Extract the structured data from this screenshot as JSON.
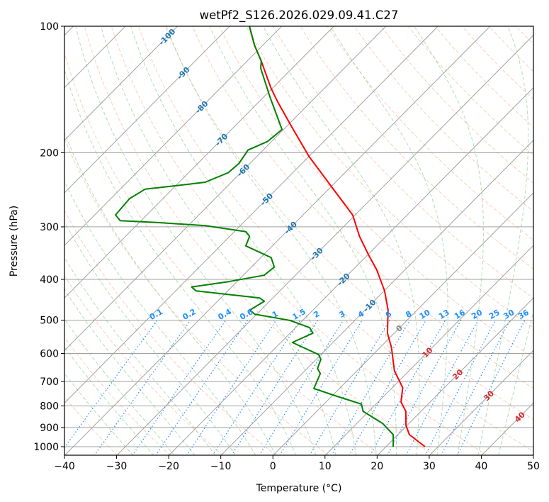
{
  "chart_data": {
    "type": "line",
    "subtype": "skew-t log-p",
    "title": "wetPf2_S126.2026.029.09.41.C27",
    "xlabel": "Temperature (°C)",
    "ylabel": "Pressure (hPa)",
    "xlim": [
      -40,
      50
    ],
    "ylim": [
      1050,
      100
    ],
    "xticks": [
      "−40",
      "−30",
      "−20",
      "−10",
      "0",
      "10",
      "20",
      "30",
      "40",
      "50"
    ],
    "xtick_values": [
      -40,
      -30,
      -20,
      -10,
      0,
      10,
      20,
      30,
      40,
      50
    ],
    "yticks": [
      "100",
      "200",
      "300",
      "400",
      "500",
      "600",
      "700",
      "800",
      "900",
      "1000"
    ],
    "ytick_values": [
      100,
      200,
      300,
      400,
      500,
      600,
      700,
      800,
      900,
      1000
    ],
    "grid": true,
    "series": [
      {
        "name": "Temperature",
        "color": "#ff0000",
        "points": [
          [
            100,
            -86.2
          ],
          [
            111,
            -81.6
          ],
          [
            121,
            -77.3
          ],
          [
            140,
            -70.4
          ],
          [
            151,
            -66.5
          ],
          [
            172,
            -59.4
          ],
          [
            204,
            -50.0
          ],
          [
            240,
            -40.1
          ],
          [
            281,
            -30.5
          ],
          [
            316,
            -25.1
          ],
          [
            350,
            -19.8
          ],
          [
            379,
            -15.5
          ],
          [
            426,
            -9.9
          ],
          [
            473,
            -5.6
          ],
          [
            537,
            -1.3
          ],
          [
            581,
            2.2
          ],
          [
            660,
            7.2
          ],
          [
            724,
            12.0
          ],
          [
            783,
            14.4
          ],
          [
            824,
            17.1
          ],
          [
            890,
            19.8
          ],
          [
            936,
            22.2
          ],
          [
            1000,
            27.5
          ]
        ]
      },
      {
        "name": "Dewpoint",
        "color": "#008000",
        "points": [
          [
            100,
            -86.2
          ],
          [
            111,
            -81.6
          ],
          [
            121,
            -77.3
          ],
          [
            126,
            -76.0
          ],
          [
            147,
            -68.9
          ],
          [
            166,
            -63.1
          ],
          [
            176,
            -60.3
          ],
          [
            188,
            -60.8
          ],
          [
            197,
            -62.9
          ],
          [
            212,
            -62.1
          ],
          [
            223,
            -62.4
          ],
          [
            235,
            -65.0
          ],
          [
            240,
            -70.6
          ],
          [
            244,
            -75.2
          ],
          [
            257,
            -76.4
          ],
          [
            281,
            -76.0
          ],
          [
            290,
            -74.0
          ],
          [
            293,
            -66.4
          ],
          [
            298,
            -56.7
          ],
          [
            308,
            -47.8
          ],
          [
            316,
            -46.2
          ],
          [
            333,
            -45.1
          ],
          [
            355,
            -38.0
          ],
          [
            374,
            -35.6
          ],
          [
            391,
            -36.0
          ],
          [
            405,
            -41.6
          ],
          [
            417,
            -47.7
          ],
          [
            426,
            -46.1
          ],
          [
            443,
            -32.5
          ],
          [
            451,
            -31.0
          ],
          [
            473,
            -32.1
          ],
          [
            484,
            -30.4
          ],
          [
            501,
            -22.4
          ],
          [
            521,
            -17.3
          ],
          [
            537,
            -15.6
          ],
          [
            565,
            -17.8
          ],
          [
            604,
            -10.4
          ],
          [
            620,
            -9.1
          ],
          [
            652,
            -8.0
          ],
          [
            670,
            -6.5
          ],
          [
            727,
            -4.9
          ],
          [
            756,
            0.5
          ],
          [
            792,
            7.2
          ],
          [
            824,
            8.9
          ],
          [
            880,
            14.9
          ],
          [
            936,
            19.1
          ],
          [
            1000,
            21.4
          ]
        ]
      }
    ],
    "isotherm_labels": [
      {
        "value": -100,
        "text": "-100",
        "color": "#1f77b4"
      },
      {
        "value": -90,
        "text": "-90",
        "color": "#1f77b4"
      },
      {
        "value": -80,
        "text": "-80",
        "color": "#1f77b4"
      },
      {
        "value": -70,
        "text": "-70",
        "color": "#1f77b4"
      },
      {
        "value": -60,
        "text": "-60",
        "color": "#1f77b4"
      },
      {
        "value": -50,
        "text": "-50",
        "color": "#1f77b4"
      },
      {
        "value": -40,
        "text": "-40",
        "color": "#1f77b4"
      },
      {
        "value": -30,
        "text": "-30",
        "color": "#1f77b4"
      },
      {
        "value": -20,
        "text": "-20",
        "color": "#1f77b4"
      },
      {
        "value": -10,
        "text": "-10",
        "color": "#1f77b4"
      },
      {
        "value": 0,
        "text": "0",
        "color": "#808080"
      },
      {
        "value": 10,
        "text": "10",
        "color": "#d62728"
      },
      {
        "value": 20,
        "text": "20",
        "color": "#d62728"
      },
      {
        "value": 30,
        "text": "30",
        "color": "#d62728"
      },
      {
        "value": 40,
        "text": "40",
        "color": "#d62728"
      }
    ],
    "mixing_ratio_labels": [
      "0.1",
      "0.2",
      "0.4",
      "0.6",
      "1",
      "1.5",
      "2",
      "3",
      "4",
      "6",
      "8",
      "10",
      "13",
      "16",
      "20",
      "25",
      "30",
      "36"
    ],
    "mixing_ratio_values": [
      0.1,
      0.2,
      0.4,
      0.6,
      1,
      1.5,
      2,
      3,
      4,
      6,
      8,
      10,
      13,
      16,
      20,
      25,
      30,
      36
    ],
    "colors": {
      "isotherm": "#a0a0a0",
      "isobar": "#a0a0a0",
      "dry_adiabat": "#f4a582",
      "moist_adiabat": "#91cf91",
      "mixing_ratio": "#1e90ff"
    }
  }
}
